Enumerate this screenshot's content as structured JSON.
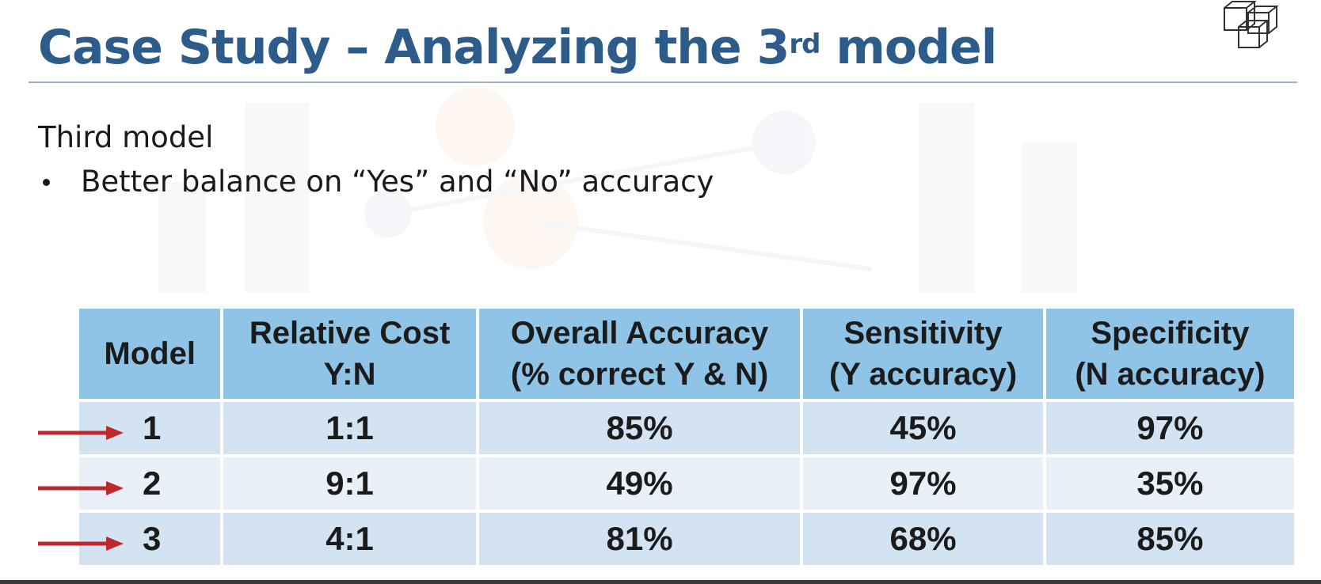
{
  "slide": {
    "title_main": "Case Study – Analyzing the 3",
    "title_sup": "rd",
    "title_end": " model",
    "heading": "Third model",
    "bullet": "Better balance on “Yes” and “No” accuracy"
  },
  "icons": {
    "logo": "cubes-icon",
    "row_marker": "arrow-right-icon"
  },
  "colors": {
    "title": "#2d5b8a",
    "header_fill": "#8fc4e6",
    "row_odd": "#d4e3f1",
    "row_even": "#e9f0f7",
    "arrow": "#c0272d"
  },
  "table": {
    "headers": [
      {
        "line1": "Model",
        "line2": ""
      },
      {
        "line1": "Relative Cost",
        "line2": "Y:N"
      },
      {
        "line1": "Overall Accuracy",
        "line2": "(% correct Y & N)"
      },
      {
        "line1": "Sensitivity",
        "line2": "(Y accuracy)"
      },
      {
        "line1": "Specificity",
        "line2": "(N accuracy)"
      }
    ],
    "rows": [
      {
        "model": "1",
        "cost": "1:1",
        "overall": "85%",
        "sensitivity": "45%",
        "specificity": "97%"
      },
      {
        "model": "2",
        "cost": "9:1",
        "overall": "49%",
        "sensitivity": "97%",
        "specificity": "35%"
      },
      {
        "model": "3",
        "cost": "4:1",
        "overall": "81%",
        "sensitivity": "68%",
        "specificity": "85%"
      }
    ]
  }
}
